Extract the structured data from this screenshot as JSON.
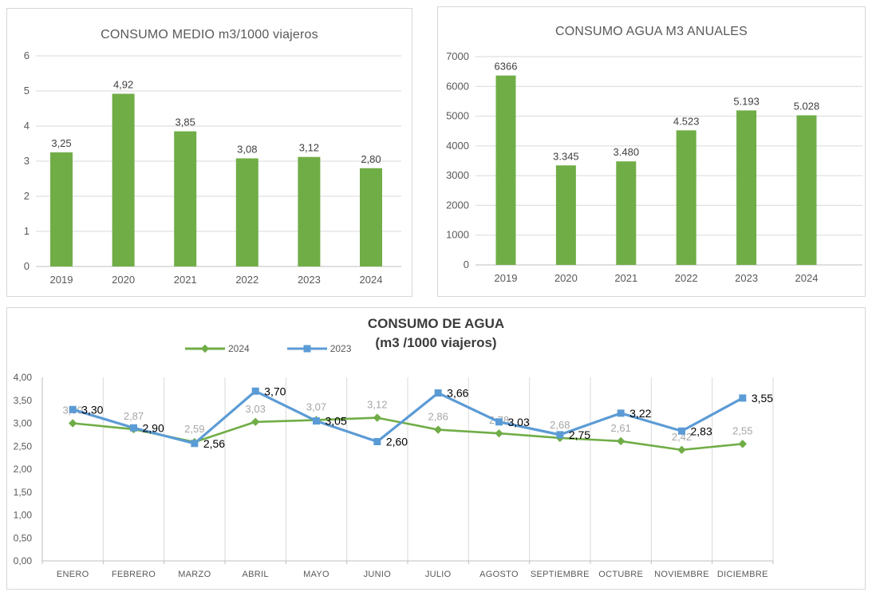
{
  "colors": {
    "bar_green": "#70AD47",
    "line_green": "#70AD47",
    "line_blue": "#5B9BD5",
    "gridline": "#D9D9D9",
    "axis": "#BFBFBF",
    "tick_text": "#595959",
    "bar_value_label": "#404040",
    "gray_data_label": "#A6A6A6",
    "black_data_label": "#000000"
  },
  "chart_data": [
    {
      "id": "consumo-medio",
      "type": "bar",
      "title": "CONSUMO MEDIO m3/1000 viajeros",
      "categories": [
        "2019",
        "2020",
        "2021",
        "2022",
        "2023",
        "2024"
      ],
      "values": [
        3.25,
        4.92,
        3.85,
        3.08,
        3.12,
        2.8
      ],
      "value_labels": [
        "3,25",
        "4,92",
        "3,85",
        "3,08",
        "3,12",
        "2,80"
      ],
      "ylim": [
        0,
        6
      ],
      "ytick_values": [
        0,
        1,
        2,
        3,
        4,
        5,
        6
      ],
      "ytick_labels": [
        "0",
        "1",
        "2",
        "3",
        "4",
        "5",
        "6"
      ],
      "grid": "horizontal",
      "legend_position": "none"
    },
    {
      "id": "consumo-agua-anual",
      "type": "bar",
      "title": "CONSUMO AGUA M3 ANUALES",
      "categories": [
        "2019",
        "2020",
        "2021",
        "2022",
        "2023",
        "2024"
      ],
      "values": [
        6366,
        3345,
        3480,
        4523,
        5193,
        5028
      ],
      "value_labels": [
        "6366",
        "3.345",
        "3.480",
        "4.523",
        "5.193",
        "5.028"
      ],
      "ylim": [
        0,
        7000
      ],
      "ytick_values": [
        0,
        1000,
        2000,
        3000,
        4000,
        5000,
        6000,
        7000
      ],
      "ytick_labels": [
        "0",
        "1000",
        "2000",
        "3000",
        "4000",
        "5000",
        "6000",
        "7000"
      ],
      "grid": "horizontal",
      "legend_position": "none"
    },
    {
      "id": "consumo-de-agua-mensual",
      "type": "line",
      "title": "CONSUMO DE AGUA",
      "subtitle": "(m3 /1000 viajeros)",
      "categories": [
        "ENERO",
        "FEBRERO",
        "MARZO",
        "ABRIL",
        "MAYO",
        "JUNIO",
        "JULIO",
        "AGOSTO",
        "SEPTIEMBRE",
        "OCTUBRE",
        "NOVIEMBRE",
        "DICIEMBRE"
      ],
      "series": [
        {
          "name": "2024",
          "color": "#70AD47",
          "marker": "diamond",
          "label_color": "#A6A6A6",
          "label_position": "above",
          "values": [
            3.0,
            2.87,
            2.59,
            3.03,
            3.07,
            3.12,
            2.86,
            2.78,
            2.68,
            2.61,
            2.42,
            2.55
          ],
          "labels": [
            "3,00",
            "2,87",
            "2,59",
            "3,03",
            "3,07",
            "3,12",
            "2,86",
            "2,78",
            "2,68",
            "2,61",
            "2,42",
            "2,55"
          ]
        },
        {
          "name": "2023",
          "color": "#5B9BD5",
          "marker": "square",
          "label_color": "#000000",
          "label_position": "right",
          "values": [
            3.3,
            2.9,
            2.56,
            3.7,
            3.05,
            2.6,
            3.66,
            3.03,
            2.75,
            3.22,
            2.83,
            3.55
          ],
          "labels": [
            "3,30",
            "2,90",
            "2,56",
            "3,70",
            "3,05",
            "2,60",
            "3,66",
            "3,03",
            "2,75",
            "3,22",
            "2,83",
            "3,55"
          ]
        }
      ],
      "ylim": [
        0,
        4
      ],
      "ytick_values": [
        0,
        0.5,
        1,
        1.5,
        2,
        2.5,
        3,
        3.5,
        4
      ],
      "ytick_labels": [
        "0,00",
        "0,50",
        "1,00",
        "1,50",
        "2,00",
        "2,50",
        "3,00",
        "3,50",
        "4,00"
      ],
      "grid": "vertical",
      "legend_position": "top-left",
      "legend": [
        "2024",
        "2023"
      ]
    }
  ]
}
